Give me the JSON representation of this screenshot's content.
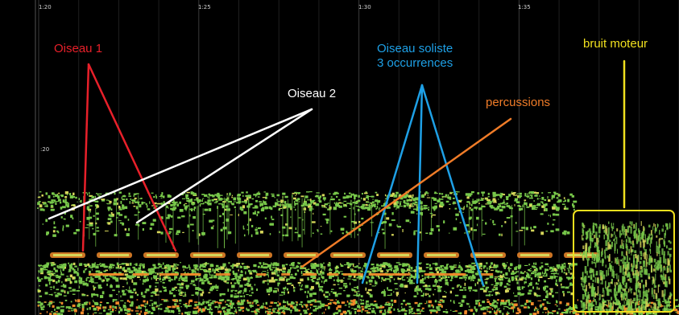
{
  "timeline": {
    "ticks": [
      "1:20",
      "1:25",
      "1:30",
      "1:35"
    ],
    "vertical_mark": ":20"
  },
  "annotations": {
    "bird1": {
      "text": "Oiseau 1",
      "color": "#e8202a"
    },
    "bird2": {
      "text": "Oiseau 2",
      "color": "#ffffff"
    },
    "solo_bird": {
      "line1": "Oiseau soliste",
      "line2": "3 occurrences",
      "color": "#1ea0e6"
    },
    "percussion": {
      "text": "percussions",
      "color": "#f07c28"
    },
    "engine": {
      "text": "bruit moteur",
      "color": "#f0e01e"
    }
  },
  "colors": {
    "background": "#000000",
    "grid": "#2a2a2a",
    "spectrogram_green": "#78c84a",
    "spectrogram_yellow": "#d6d65a",
    "spectrogram_orange": "#f08a2a"
  }
}
